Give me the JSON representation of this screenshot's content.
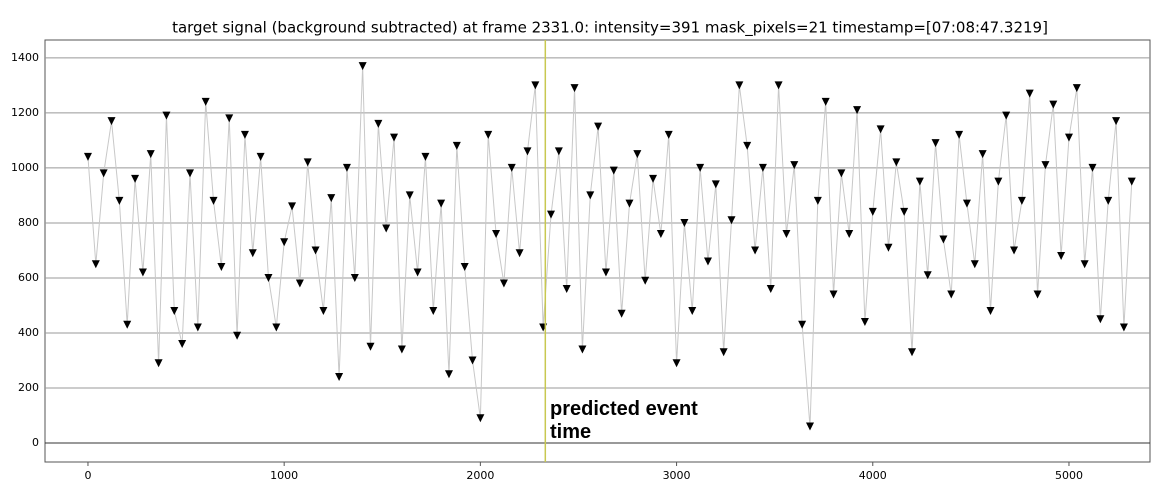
{
  "chart_data": {
    "type": "line",
    "title": "target signal (background subtracted) at frame 2331.0: intensity=391 mask_pixels=21 timestamp=[07:08:47.3219]",
    "x": [
      0,
      40,
      80,
      120,
      160,
      200,
      240,
      280,
      320,
      360,
      400,
      440,
      480,
      520,
      560,
      600,
      640,
      680,
      720,
      760,
      800,
      840,
      880,
      920,
      960,
      1000,
      1040,
      1080,
      1120,
      1160,
      1200,
      1240,
      1280,
      1320,
      1360,
      1400,
      1440,
      1480,
      1520,
      1560,
      1600,
      1640,
      1680,
      1720,
      1760,
      1800,
      1840,
      1880,
      1920,
      1960,
      2000,
      2040,
      2080,
      2120,
      2160,
      2200,
      2240,
      2280,
      2320,
      2360,
      2400,
      2440,
      2480,
      2520,
      2560,
      2600,
      2640,
      2680,
      2720,
      2760,
      2800,
      2840,
      2880,
      2920,
      2960,
      3000,
      3040,
      3080,
      3120,
      3160,
      3200,
      3240,
      3280,
      3320,
      3360,
      3400,
      3440,
      3480,
      3520,
      3560,
      3600,
      3640,
      3680,
      3720,
      3760,
      3800,
      3840,
      3880,
      3920,
      3960,
      4000,
      4040,
      4080,
      4120,
      4160,
      4200,
      4240,
      4280,
      4320,
      4360,
      4400,
      4440,
      4480,
      4520,
      4560,
      4600,
      4640,
      4680,
      4720,
      4760,
      4800,
      4840,
      4880,
      4920,
      4960,
      5000,
      5040,
      5080,
      5120,
      5160,
      5200,
      5240,
      5280,
      5320
    ],
    "values": [
      1040,
      650,
      980,
      1170,
      880,
      430,
      960,
      620,
      1050,
      290,
      1190,
      480,
      360,
      980,
      420,
      1240,
      880,
      640,
      1180,
      390,
      1120,
      690,
      1040,
      600,
      420,
      730,
      860,
      580,
      1020,
      700,
      480,
      890,
      240,
      1000,
      600,
      1370,
      350,
      1160,
      780,
      1110,
      340,
      900,
      620,
      1040,
      480,
      870,
      250,
      1080,
      640,
      300,
      90,
      1120,
      760,
      580,
      1000,
      690,
      1060,
      1300,
      420,
      830,
      1060,
      560,
      1290,
      340,
      900,
      1150,
      620,
      990,
      470,
      870,
      1050,
      590,
      960,
      760,
      1120,
      290,
      800,
      480,
      1000,
      660,
      940,
      330,
      810,
      1300,
      1080,
      700,
      1000,
      560,
      1300,
      760,
      1010,
      430,
      60,
      880,
      1240,
      540,
      980,
      760,
      1210,
      440,
      840,
      1140,
      710,
      1020,
      840,
      330,
      950,
      610,
      1090,
      740,
      540,
      1120,
      870,
      650,
      1050,
      480,
      950,
      1190,
      700,
      880,
      1270,
      540,
      1010,
      1230,
      680,
      1110,
      1290,
      650,
      1000,
      450,
      880,
      1170,
      420,
      950
    ],
    "line_color": "#c8c8c8",
    "marker_color": "#000000",
    "xlim": [
      -219,
      5413
    ],
    "ylim": [
      -69,
      1465
    ],
    "xticks": [
      0,
      1000,
      2000,
      3000,
      4000,
      5000
    ],
    "yticks": [
      0,
      200,
      400,
      600,
      800,
      1000,
      1200,
      1400
    ],
    "grid": true,
    "event": {
      "x": 2331,
      "label": "predicted event time",
      "color": "#c8c850"
    }
  }
}
